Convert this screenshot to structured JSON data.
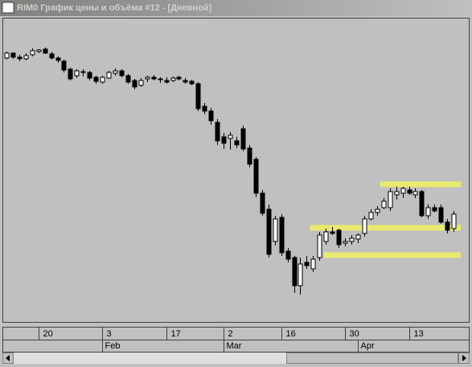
{
  "window_title": "RIM0 График цены и объёма #12 - [Дневной]",
  "chart_data": {
    "type": "candlestick",
    "open": [
      328,
      334,
      329,
      327,
      332,
      336,
      339,
      333,
      328,
      324,
      314,
      306,
      311,
      310,
      304,
      298,
      303,
      309,
      312,
      306,
      300,
      294,
      302,
      304,
      301,
      300,
      300,
      304,
      300,
      299,
      296,
      268,
      262,
      248,
      230,
      228,
      225,
      240,
      216,
      202,
      160,
      140,
      100,
      130,
      88,
      80,
      45,
      74,
      66,
      80,
      100,
      112,
      114,
      98,
      100,
      103,
      110,
      128,
      136,
      142,
      142,
      158,
      160,
      164,
      158,
      162,
      132,
      142,
      142,
      124,
      116
    ],
    "high": [
      336,
      335,
      332,
      334,
      340,
      339,
      341,
      336,
      330,
      326,
      316,
      314,
      314,
      312,
      306,
      306,
      312,
      315,
      314,
      308,
      302,
      303,
      306,
      307,
      304,
      304,
      305,
      306,
      303,
      301,
      298,
      272,
      266,
      252,
      235,
      236,
      230,
      244,
      220,
      205,
      164,
      146,
      132,
      134,
      92,
      82,
      80,
      82,
      82,
      112,
      116,
      118,
      116,
      104,
      108,
      110,
      132,
      140,
      144,
      154,
      166,
      168,
      168,
      168,
      166,
      164,
      146,
      146,
      146,
      128,
      138
    ],
    "low": [
      326,
      327,
      324,
      325,
      330,
      334,
      333,
      326,
      322,
      310,
      300,
      303,
      305,
      300,
      296,
      296,
      302,
      306,
      304,
      296,
      289,
      292,
      298,
      300,
      297,
      296,
      298,
      300,
      296,
      294,
      262,
      258,
      245,
      220,
      215,
      214,
      216,
      212,
      192,
      155,
      132,
      80,
      95,
      82,
      74,
      36,
      34,
      66,
      62,
      76,
      96,
      108,
      92,
      94,
      96,
      98,
      106,
      126,
      132,
      140,
      138,
      152,
      154,
      158,
      154,
      130,
      128,
      136,
      122,
      110,
      112
    ],
    "close": [
      334,
      329,
      327,
      331,
      337,
      338,
      334,
      328,
      325,
      313,
      302,
      312,
      310,
      303,
      299,
      304,
      310,
      312,
      306,
      298,
      292,
      300,
      304,
      302,
      302,
      298,
      303,
      302,
      298,
      296,
      265,
      262,
      250,
      225,
      222,
      232,
      220,
      215,
      196,
      160,
      135,
      84,
      128,
      86,
      78,
      45,
      72,
      70,
      78,
      108,
      112,
      110,
      96,
      100,
      104,
      108,
      128,
      136,
      140,
      150,
      162,
      162,
      166,
      160,
      162,
      132,
      142,
      138,
      124,
      114,
      134
    ],
    "ylim": [
      0,
      378
    ],
    "xlim": [
      -0.5,
      72.5
    ],
    "levels": [
      171,
      117,
      83
    ],
    "level_color": "#f0f060",
    "xticks": [
      {
        "value": 5,
        "label": "20"
      },
      {
        "value": 15,
        "label": "3"
      },
      {
        "value": 25,
        "label": "17"
      },
      {
        "value": 34,
        "label": "2"
      },
      {
        "value": 43,
        "label": "16"
      },
      {
        "value": 53,
        "label": "30"
      },
      {
        "value": 63,
        "label": "13"
      }
    ],
    "months": [
      {
        "value": 15,
        "label": "Feb"
      },
      {
        "value": 34,
        "label": "Mar"
      },
      {
        "value": 55,
        "label": "Apr"
      }
    ]
  }
}
